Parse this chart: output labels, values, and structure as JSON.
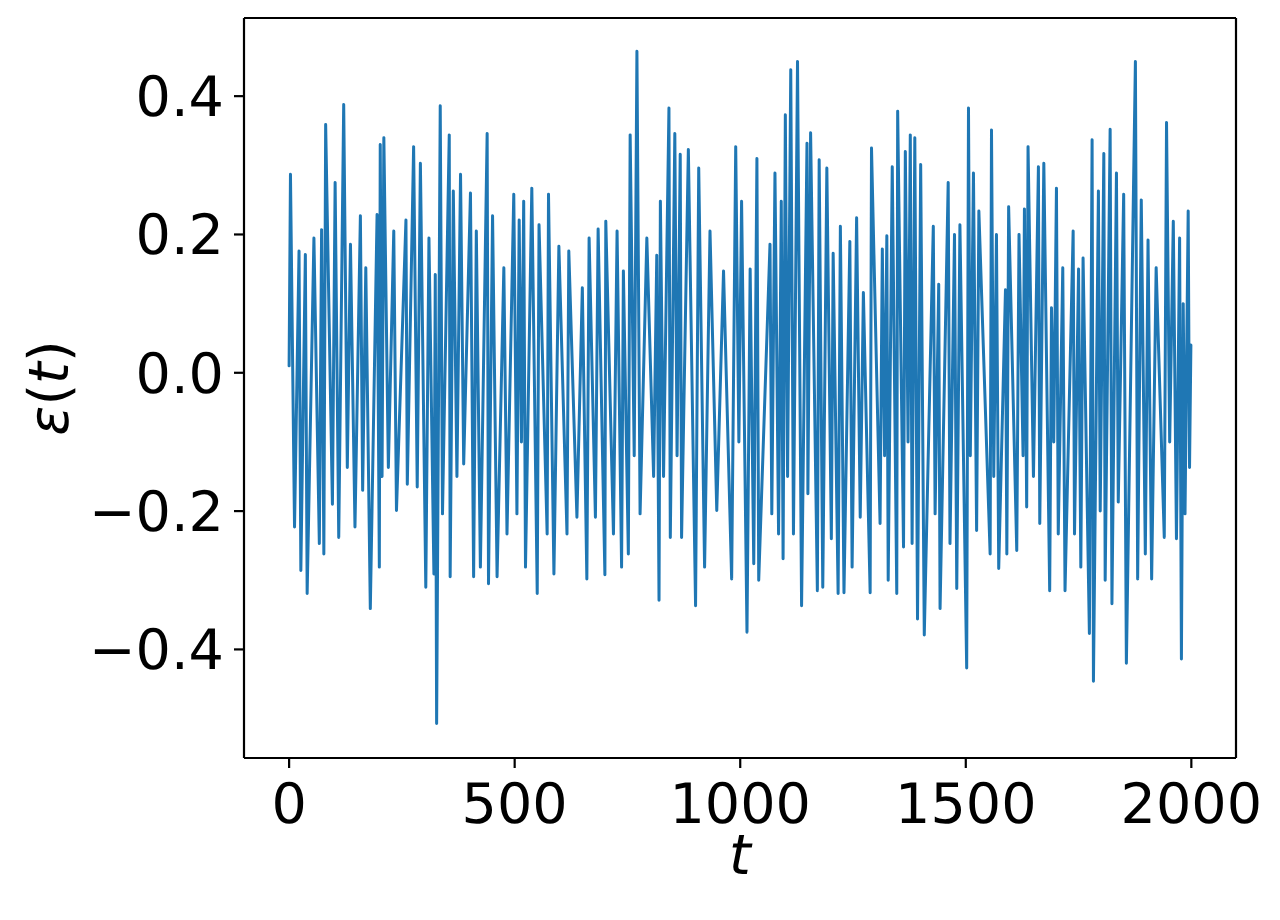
{
  "chart_data": {
    "type": "line",
    "xlabel": "t",
    "ylabel": "ε(t)",
    "x": [
      0,
      3,
      12,
      22,
      26,
      36,
      40,
      55,
      67,
      72,
      77,
      81,
      96,
      102,
      110,
      121,
      129,
      136,
      146,
      158,
      163,
      170,
      180,
      195,
      200,
      202,
      206,
      210,
      220,
      232,
      238,
      259,
      262,
      276,
      284,
      291,
      303,
      310,
      321,
      324,
      327,
      335,
      340,
      355,
      357,
      364,
      372,
      380,
      387,
      402,
      409,
      415,
      424,
      439,
      442,
      451,
      461,
      476,
      483,
      498,
      505,
      510,
      515,
      520,
      524,
      538,
      550,
      554,
      572,
      575,
      587,
      598,
      616,
      620,
      638,
      650,
      660,
      665,
      679,
      685,
      700,
      702,
      719,
      727,
      737,
      741,
      752,
      756,
      765,
      771,
      778,
      793,
      808,
      815,
      820,
      823,
      830,
      842,
      845,
      855,
      860,
      867,
      870,
      885,
      901,
      908,
      921,
      933,
      948,
      963,
      981,
      990,
      997,
      1003,
      1015,
      1022,
      1030,
      1037,
      1041,
      1066,
      1070,
      1077,
      1085,
      1091,
      1095,
      1100,
      1105,
      1112,
      1118,
      1127,
      1136,
      1148,
      1150,
      1156,
      1171,
      1175,
      1183,
      1192,
      1202,
      1206,
      1217,
      1222,
      1230,
      1243,
      1248,
      1258,
      1266,
      1273,
      1288,
      1291,
      1310,
      1315,
      1320,
      1325,
      1328,
      1337,
      1347,
      1349,
      1362,
      1366,
      1372,
      1377,
      1381,
      1387,
      1393,
      1400,
      1408,
      1428,
      1432,
      1440,
      1443,
      1461,
      1465,
      1475,
      1480,
      1487,
      1502,
      1506,
      1510,
      1517,
      1524,
      1529,
      1554,
      1557,
      1562,
      1568,
      1573,
      1588,
      1591,
      1595,
      1613,
      1618,
      1627,
      1630,
      1635,
      1638,
      1650,
      1661,
      1664,
      1673,
      1686,
      1690,
      1695,
      1701,
      1705,
      1715,
      1720,
      1738,
      1741,
      1750,
      1755,
      1760,
      1774,
      1780,
      1783,
      1794,
      1798,
      1806,
      1809,
      1820,
      1824,
      1834,
      1838,
      1850,
      1856,
      1876,
      1881,
      1889,
      1898,
      1904,
      1912,
      1922,
      1940,
      1945,
      1952,
      1960,
      1967,
      1974,
      1978,
      1982,
      1986,
      1993,
      1996,
      1999
    ],
    "series": [
      {
        "color": "#1f77b4",
        "values": [
          0.01,
          0.287,
          -0.223,
          0.176,
          -0.286,
          0.171,
          -0.319,
          0.195,
          -0.247,
          0.207,
          -0.262,
          0.359,
          -0.19,
          0.275,
          -0.238,
          0.388,
          -0.137,
          0.186,
          -0.223,
          0.227,
          -0.17,
          0.152,
          -0.341,
          0.229,
          -0.281,
          0.33,
          -0.15,
          0.34,
          -0.137,
          0.205,
          -0.199,
          0.221,
          -0.161,
          0.327,
          -0.165,
          0.303,
          -0.31,
          0.195,
          -0.291,
          0.142,
          -0.507,
          0.386,
          -0.204,
          0.344,
          -0.295,
          0.263,
          -0.15,
          0.287,
          -0.132,
          0.26,
          -0.295,
          0.205,
          -0.281,
          0.346,
          -0.305,
          0.227,
          -0.295,
          0.152,
          -0.233,
          0.258,
          -0.204,
          0.221,
          -0.1,
          0.248,
          -0.281,
          0.267,
          -0.319,
          0.214,
          -0.233,
          0.258,
          -0.291,
          0.183,
          -0.233,
          0.176,
          -0.209,
          0.123,
          -0.298,
          0.195,
          -0.209,
          0.208,
          -0.292,
          0.219,
          -0.233,
          0.205,
          -0.281,
          0.147,
          -0.262,
          0.344,
          -0.12,
          0.465,
          -0.204,
          0.195,
          -0.15,
          0.17,
          -0.329,
          0.248,
          -0.15,
          0.383,
          -0.238,
          0.346,
          -0.12,
          0.316,
          -0.238,
          0.323,
          -0.337,
          0.296,
          -0.281,
          0.205,
          -0.199,
          0.147,
          -0.298,
          0.327,
          -0.1,
          0.248,
          -0.375,
          0.15,
          -0.276,
          0.31,
          -0.3,
          0.186,
          -0.204,
          0.289,
          -0.233,
          0.248,
          -0.269,
          0.373,
          -0.15,
          0.438,
          -0.233,
          0.45,
          -0.337,
          0.332,
          -0.175,
          0.347,
          -0.315,
          0.308,
          -0.31,
          0.296,
          -0.24,
          0.173,
          -0.319,
          0.212,
          -0.318,
          0.19,
          -0.281,
          0.224,
          -0.209,
          0.116,
          -0.318,
          0.325,
          -0.218,
          0.179,
          -0.12,
          0.198,
          -0.3,
          0.298,
          -0.319,
          0.378,
          -0.252,
          0.32,
          -0.1,
          0.344,
          -0.247,
          0.34,
          -0.356,
          0.301,
          -0.379,
          0.212,
          -0.204,
          0.128,
          -0.341,
          0.275,
          -0.247,
          0.2,
          -0.312,
          0.214,
          -0.427,
          0.383,
          -0.12,
          0.289,
          -0.228,
          0.234,
          -0.262,
          0.351,
          -0.15,
          0.2,
          -0.283,
          0.12,
          -0.262,
          0.24,
          -0.257,
          0.2,
          -0.12,
          0.237,
          -0.194,
          0.327,
          -0.15,
          0.298,
          -0.218,
          0.303,
          -0.315,
          0.094,
          -0.1,
          0.267,
          -0.233,
          0.152,
          -0.315,
          0.205,
          -0.233,
          0.15,
          -0.281,
          0.166,
          -0.377,
          0.337,
          -0.446,
          0.263,
          -0.2,
          0.317,
          -0.3,
          0.352,
          -0.334,
          0.289,
          -0.187,
          0.258,
          -0.42,
          0.45,
          -0.298,
          0.25,
          -0.262,
          0.192,
          -0.298,
          0.152,
          -0.238,
          0.362,
          -0.1,
          0.219,
          -0.24,
          0.195,
          -0.414,
          0.1,
          -0.204,
          0.234,
          -0.137,
          0.04
        ]
      }
    ],
    "xlim": [
      -100,
      2099
    ],
    "ylim": [
      -0.557,
      0.513
    ],
    "xticks": [
      0,
      500,
      1000,
      1500,
      2000
    ],
    "yticks": [
      {
        "value": -0.4,
        "label": "−0.4"
      },
      {
        "value": -0.2,
        "label": "−0.2"
      },
      {
        "value": 0,
        "label": "0.0"
      },
      0.2,
      0.4
    ]
  }
}
